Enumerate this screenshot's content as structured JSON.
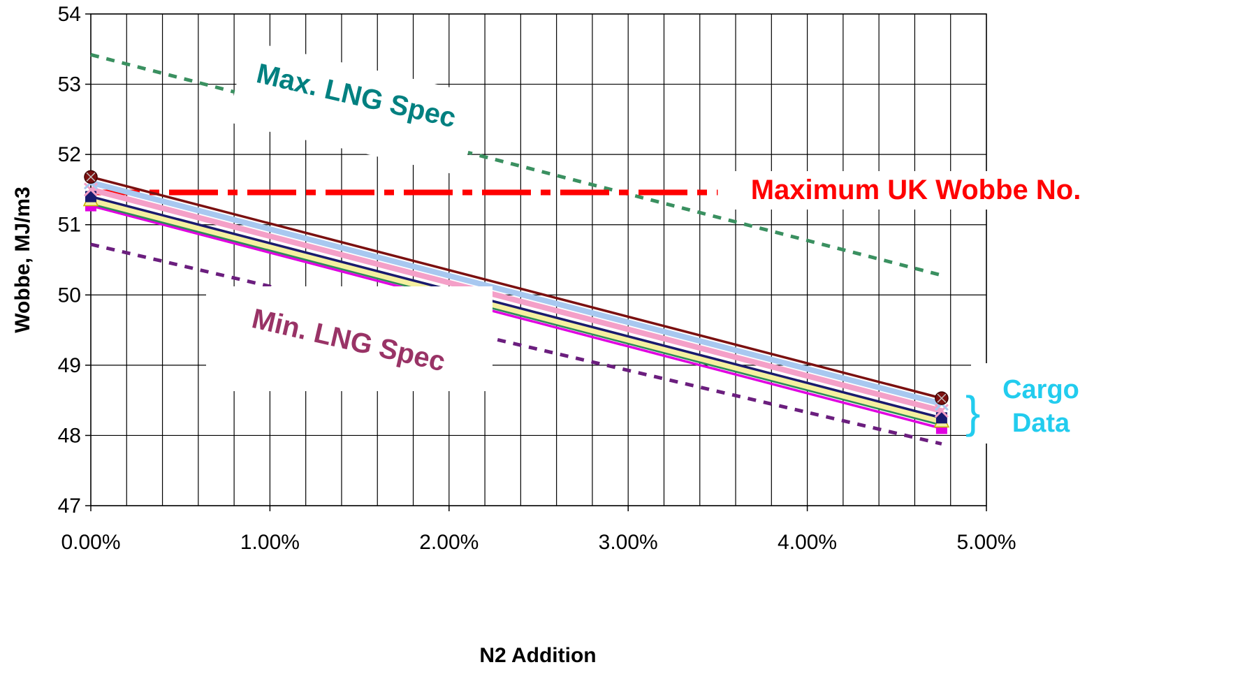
{
  "chart_data": {
    "type": "line",
    "title": "",
    "xlabel": "N2 Addition",
    "ylabel": "Wobbe, MJ/m3",
    "xlim": [
      0,
      5
    ],
    "ylim": [
      47,
      54
    ],
    "x_tick_labels": [
      "0.00%",
      "1.00%",
      "2.00%",
      "3.00%",
      "4.00%",
      "5.00%"
    ],
    "y_tick_labels": [
      "47",
      "48",
      "49",
      "50",
      "51",
      "52",
      "53",
      "54"
    ],
    "grid": true,
    "x": [
      0.0,
      4.75
    ],
    "series": [
      {
        "color": "#7B1010",
        "marker": "circle",
        "values": [
          51.68,
          48.53
        ]
      },
      {
        "color": "#A8C8F0",
        "marker": "cross",
        "values": [
          51.6,
          48.45
        ]
      },
      {
        "color": "#F4A0C8",
        "marker": "cross",
        "values": [
          51.5,
          48.35
        ]
      },
      {
        "color": "#1A1A6E",
        "marker": "square",
        "values": [
          51.4,
          48.25
        ]
      },
      {
        "color": "#F5F0A0",
        "marker": "triangle",
        "values": [
          51.35,
          48.2
        ]
      },
      {
        "color": "#2E8B57",
        "marker": "none",
        "values": [
          51.3,
          48.15
        ]
      },
      {
        "color": "#E000E0",
        "marker": "square",
        "values": [
          51.27,
          48.1
        ]
      }
    ],
    "reference_lines": [
      {
        "label": "Max. LNG Spec",
        "style": "dotted",
        "color": "#3A9060",
        "x": [
          0.0,
          4.75
        ],
        "values": [
          53.42,
          50.28
        ]
      },
      {
        "label": "Min. LNG Spec",
        "style": "dotted",
        "color": "#6B1E7E",
        "x": [
          0.0,
          4.75
        ],
        "values": [
          50.72,
          47.88
        ]
      },
      {
        "label": "Maximum UK Wobbe No.",
        "style": "dash-dot",
        "color": "#FF0000",
        "x": [
          0.0,
          3.5
        ],
        "values": [
          51.46,
          51.46
        ]
      }
    ],
    "annotations": {
      "max_spec": {
        "text": "Max. LNG Spec",
        "color": "#008080"
      },
      "min_spec": {
        "text": "Min. LNG Spec",
        "color": "#993366"
      },
      "uk_max": {
        "text": "Maximum UK Wobbe No.",
        "color": "#FF0000"
      },
      "cargo_line1": "Cargo",
      "cargo_line2": "Data",
      "cargo_color": "#22CCEE"
    }
  }
}
